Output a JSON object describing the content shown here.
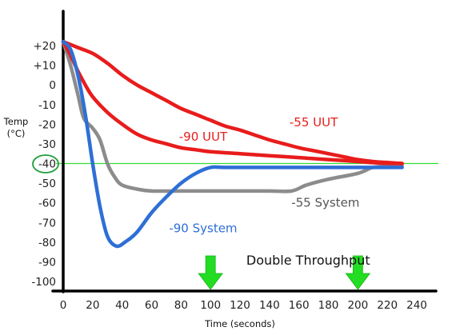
{
  "chart_data": {
    "type": "line",
    "title": "",
    "ylabel_line1": "Temp",
    "ylabel_line2": "(°C)",
    "xlabel": "Time (seconds)",
    "xlim": [
      0,
      240
    ],
    "ylim": [
      -100,
      20
    ],
    "x_ticks": [
      {
        "value": 0,
        "label": "0"
      },
      {
        "value": 20,
        "label": "20"
      },
      {
        "value": 40,
        "label": "40"
      },
      {
        "value": 60,
        "label": "60"
      },
      {
        "value": 80,
        "label": "80"
      },
      {
        "value": 100,
        "label": "100"
      },
      {
        "value": 120,
        "label": "120"
      },
      {
        "value": 140,
        "label": "140"
      },
      {
        "value": 160,
        "label": "160"
      },
      {
        "value": 180,
        "label": "180"
      },
      {
        "value": 200,
        "label": "200"
      },
      {
        "value": 220,
        "label": "220"
      },
      {
        "value": 240,
        "label": "240"
      }
    ],
    "y_ticks": [
      {
        "value": 20,
        "label": "+20"
      },
      {
        "value": 10,
        "label": "+10"
      },
      {
        "value": 0,
        "label": "0"
      },
      {
        "value": -10,
        "label": "-10"
      },
      {
        "value": -20,
        "label": "-20"
      },
      {
        "value": -30,
        "label": "-30"
      },
      {
        "value": -40,
        "label": "-40"
      },
      {
        "value": -50,
        "label": "-50"
      },
      {
        "value": -60,
        "label": "-60"
      },
      {
        "value": -70,
        "label": "-70"
      },
      {
        "value": -80,
        "label": "-80"
      },
      {
        "value": -90,
        "label": "-90"
      },
      {
        "value": -100,
        "label": "-100"
      }
    ],
    "highlighted_tick": -40,
    "reference_line": {
      "y": -40,
      "color": "#33dd33"
    },
    "series": [
      {
        "name": "-55 UUT",
        "color": "#e81c1c",
        "points": [
          [
            0,
            22
          ],
          [
            10,
            19
          ],
          [
            20,
            16
          ],
          [
            30,
            11
          ],
          [
            40,
            5
          ],
          [
            50,
            0
          ],
          [
            60,
            -4
          ],
          [
            70,
            -8
          ],
          [
            80,
            -12
          ],
          [
            90,
            -15
          ],
          [
            100,
            -18
          ],
          [
            110,
            -21
          ],
          [
            120,
            -23
          ],
          [
            130,
            -25.5
          ],
          [
            140,
            -28
          ],
          [
            150,
            -30
          ],
          [
            160,
            -32
          ],
          [
            170,
            -33.5
          ],
          [
            180,
            -35
          ],
          [
            190,
            -36.5
          ],
          [
            200,
            -38
          ],
          [
            210,
            -39
          ],
          [
            220,
            -39.5
          ],
          [
            230,
            -40
          ]
        ]
      },
      {
        "name": "-90 UUT",
        "color": "#e81c1c",
        "points": [
          [
            0,
            22
          ],
          [
            5,
            15
          ],
          [
            10,
            7
          ],
          [
            15,
            0
          ],
          [
            20,
            -6
          ],
          [
            30,
            -14
          ],
          [
            40,
            -20
          ],
          [
            50,
            -25
          ],
          [
            60,
            -28
          ],
          [
            70,
            -30
          ],
          [
            80,
            -32
          ],
          [
            90,
            -33
          ],
          [
            100,
            -34
          ],
          [
            120,
            -35
          ],
          [
            140,
            -36
          ],
          [
            160,
            -37
          ],
          [
            180,
            -38
          ],
          [
            200,
            -39
          ],
          [
            215,
            -39.8
          ],
          [
            230,
            -40
          ]
        ]
      },
      {
        "name": "-55 System",
        "color": "#8c8c8c",
        "points": [
          [
            0,
            22
          ],
          [
            5,
            10
          ],
          [
            10,
            -5
          ],
          [
            14,
            -17
          ],
          [
            20,
            -22
          ],
          [
            25,
            -28
          ],
          [
            30,
            -40
          ],
          [
            35,
            -47
          ],
          [
            40,
            -51
          ],
          [
            50,
            -53
          ],
          [
            60,
            -54
          ],
          [
            80,
            -54
          ],
          [
            100,
            -54
          ],
          [
            120,
            -54
          ],
          [
            140,
            -54
          ],
          [
            155,
            -54
          ],
          [
            165,
            -51
          ],
          [
            180,
            -48
          ],
          [
            200,
            -45
          ],
          [
            210,
            -42
          ],
          [
            220,
            -41.5
          ],
          [
            230,
            -41
          ]
        ]
      },
      {
        "name": "-90 System",
        "color": "#2e6fd6",
        "points": [
          [
            0,
            22
          ],
          [
            5,
            18
          ],
          [
            10,
            5
          ],
          [
            15,
            -15
          ],
          [
            20,
            -40
          ],
          [
            25,
            -62
          ],
          [
            30,
            -77
          ],
          [
            36,
            -82
          ],
          [
            42,
            -80
          ],
          [
            50,
            -75
          ],
          [
            60,
            -65
          ],
          [
            70,
            -57
          ],
          [
            80,
            -50
          ],
          [
            90,
            -45
          ],
          [
            100,
            -42
          ],
          [
            110,
            -42
          ],
          [
            140,
            -42
          ],
          [
            170,
            -42
          ],
          [
            200,
            -42
          ],
          [
            230,
            -42
          ]
        ]
      }
    ],
    "series_labels": [
      {
        "series": 0,
        "text": "-55 UUT",
        "at": [
          170,
          -21
        ],
        "color": "#e81c1c"
      },
      {
        "series": 1,
        "text": "-90 UUT",
        "at": [
          95,
          -28.5
        ],
        "color": "#e81c1c"
      },
      {
        "series": 2,
        "text": "-55 System",
        "at": [
          178,
          -62
        ],
        "color": "#555555"
      },
      {
        "series": 3,
        "text": "-90 System",
        "at": [
          95,
          -75
        ],
        "color": "#2e6fd6"
      }
    ],
    "annotations": [
      {
        "type": "arrow",
        "x": 100,
        "color": "#22dd22"
      },
      {
        "type": "arrow",
        "x": 200,
        "color": "#22dd22"
      },
      {
        "type": "text",
        "text": "Double Throughput",
        "at": [
          150,
          -88
        ]
      }
    ]
  }
}
